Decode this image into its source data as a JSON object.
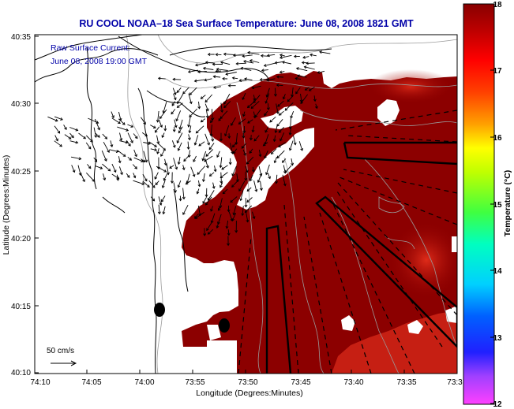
{
  "title": "RU COOL  NOAA–18  Sea Surface Temperature:  June 08, 2008 1821 GMT",
  "current_label": "Raw Surface Current:",
  "current_time": "June 08, 2008 19:00 GMT",
  "scale_label": "50 cm/s",
  "xlabel": "Longitude (Degrees:Minutes)",
  "ylabel": "Latitude (Degrees:Minutes)",
  "x_ticks": [
    "74:10",
    "74:05",
    "74:00",
    "73:55",
    "73:50",
    "73:45",
    "73:40",
    "73:35",
    "73:3"
  ],
  "y_ticks": [
    "40:35",
    "40:30",
    "40:25",
    "40:20",
    "40:15",
    "40:10"
  ],
  "colorbar": {
    "label": "Temperature (°C)",
    "ticks": [
      "18",
      "17",
      "16",
      "15",
      "14",
      "13",
      "12"
    ]
  },
  "colors": {
    "title": "#0000a8",
    "sst_main": "#8c0000",
    "sst_warm": "#d42014",
    "land": "#ffffff",
    "coast": "#000000",
    "bathy": "#999999"
  }
}
